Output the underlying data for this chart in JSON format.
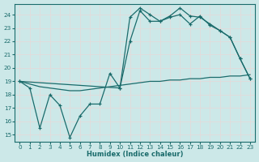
{
  "bg_color": "#cce8e8",
  "line_color": "#1a6b6b",
  "grid_color": "#e8d8d8",
  "xlabel": "Humidex (Indice chaleur)",
  "xlim": [
    -0.5,
    23.5
  ],
  "ylim": [
    14.5,
    24.8
  ],
  "yticks": [
    15,
    16,
    17,
    18,
    19,
    20,
    21,
    22,
    23,
    24
  ],
  "xticks": [
    0,
    1,
    2,
    3,
    4,
    5,
    6,
    7,
    8,
    9,
    10,
    11,
    12,
    13,
    14,
    15,
    16,
    17,
    18,
    19,
    20,
    21,
    22,
    23
  ],
  "line1_x": [
    0,
    1,
    2,
    3,
    4,
    5,
    6,
    7,
    8,
    9,
    10,
    11,
    12,
    13,
    14,
    15,
    16,
    17,
    18,
    19,
    20,
    21,
    22,
    23
  ],
  "line1_y": [
    19.0,
    18.5,
    15.5,
    18.0,
    17.2,
    14.8,
    16.4,
    17.3,
    17.3,
    19.6,
    18.5,
    23.8,
    24.5,
    24.0,
    23.5,
    23.9,
    24.5,
    23.9,
    23.8,
    23.3,
    22.8,
    22.3,
    20.7,
    19.2
  ],
  "line2_x": [
    0,
    1,
    2,
    3,
    4,
    5,
    6,
    7,
    8,
    9,
    10,
    11,
    12,
    13,
    14,
    15,
    16,
    17,
    18,
    19,
    20,
    21,
    22,
    23
  ],
  "line2_y": [
    19.0,
    18.8,
    18.6,
    18.5,
    18.4,
    18.3,
    18.3,
    18.4,
    18.5,
    18.6,
    18.7,
    18.8,
    18.9,
    19.0,
    19.0,
    19.1,
    19.1,
    19.2,
    19.2,
    19.3,
    19.3,
    19.4,
    19.4,
    19.5
  ],
  "line3_x": [
    0,
    10,
    11,
    12,
    13,
    14,
    15,
    16,
    17,
    18,
    19,
    20,
    21,
    22,
    23
  ],
  "line3_y": [
    19.0,
    18.5,
    22.0,
    24.3,
    23.5,
    23.5,
    23.8,
    24.0,
    23.3,
    23.9,
    23.2,
    22.8,
    22.3,
    20.7,
    19.2
  ]
}
